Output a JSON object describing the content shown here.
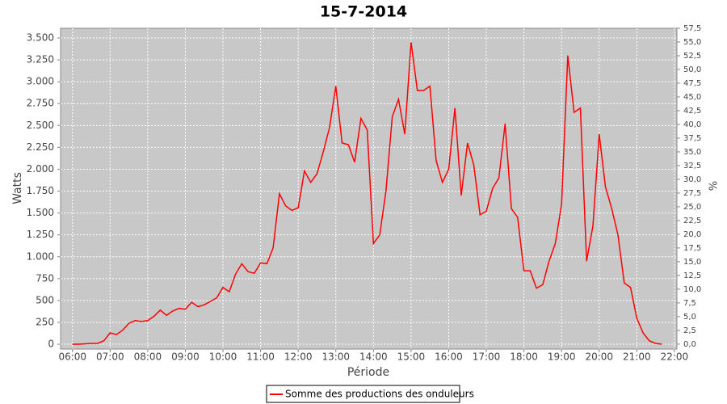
{
  "chart_data": {
    "type": "line",
    "title": "15-7-2014",
    "x_label": "Période",
    "y_label": "Watts",
    "y2_label": "%",
    "x": [
      "06:00",
      "06:10",
      "06:20",
      "06:30",
      "06:40",
      "06:50",
      "07:00",
      "07:10",
      "07:20",
      "07:30",
      "07:40",
      "07:50",
      "08:00",
      "08:10",
      "08:20",
      "08:30",
      "08:40",
      "08:50",
      "09:00",
      "09:10",
      "09:20",
      "09:30",
      "09:40",
      "09:50",
      "10:00",
      "10:10",
      "10:20",
      "10:30",
      "10:40",
      "10:50",
      "11:00",
      "11:10",
      "11:20",
      "11:30",
      "11:40",
      "11:50",
      "12:00",
      "12:10",
      "12:20",
      "12:30",
      "12:40",
      "12:50",
      "13:00",
      "13:10",
      "13:20",
      "13:30",
      "13:40",
      "13:50",
      "14:00",
      "14:10",
      "14:20",
      "14:30",
      "14:40",
      "14:50",
      "15:00",
      "15:10",
      "15:20",
      "15:30",
      "15:40",
      "15:50",
      "16:00",
      "16:10",
      "16:20",
      "16:30",
      "16:40",
      "16:50",
      "17:00",
      "17:10",
      "17:20",
      "17:30",
      "17:40",
      "17:50",
      "18:00",
      "18:10",
      "18:20",
      "18:30",
      "18:40",
      "18:50",
      "19:00",
      "19:10",
      "19:20",
      "19:30",
      "19:40",
      "19:50",
      "20:00",
      "20:10",
      "20:20",
      "20:30",
      "20:40",
      "20:50",
      "21:00",
      "21:10",
      "21:20",
      "21:30",
      "21:40"
    ],
    "series": [
      {
        "name": "Somme des productions des onduleurs",
        "color": "#ff0000",
        "values": [
          0,
          0,
          5,
          10,
          10,
          40,
          130,
          110,
          160,
          240,
          270,
          260,
          270,
          320,
          390,
          330,
          380,
          410,
          400,
          480,
          430,
          450,
          490,
          530,
          650,
          600,
          800,
          920,
          830,
          810,
          930,
          920,
          1100,
          1720,
          1580,
          1530,
          1560,
          1980,
          1850,
          1950,
          2200,
          2480,
          2950,
          2300,
          2280,
          2080,
          2580,
          2450,
          1150,
          1250,
          1750,
          2600,
          2800,
          2400,
          3450,
          2900,
          2900,
          2950,
          2100,
          1850,
          2000,
          2700,
          1700,
          2300,
          2050,
          1480,
          1520,
          1780,
          1900,
          2520,
          1550,
          1450,
          840,
          840,
          640,
          680,
          950,
          1150,
          1600,
          3300,
          2650,
          2700,
          950,
          1350,
          2400,
          1800,
          1550,
          1250,
          700,
          650,
          300,
          130,
          40,
          10,
          0
        ]
      }
    ],
    "xlim": [
      "05:41",
      "22:04"
    ],
    "xticks": [
      "06:00",
      "07:00",
      "08:00",
      "09:00",
      "10:00",
      "11:00",
      "12:00",
      "13:00",
      "14:00",
      "15:00",
      "16:00",
      "17:00",
      "18:00",
      "19:00",
      "20:00",
      "21:00",
      "22:00"
    ],
    "ylim": [
      -55,
      3611
    ],
    "yticks": [
      0,
      250,
      500,
      750,
      {
        "value": 1000,
        "label": "1.000"
      },
      {
        "value": 1250,
        "label": "1.250"
      },
      {
        "value": 1500,
        "label": "1.500"
      },
      {
        "value": 1750,
        "label": "1.750"
      },
      {
        "value": 2000,
        "label": "2.000"
      },
      {
        "value": 2250,
        "label": "2.250"
      },
      {
        "value": 2500,
        "label": "2.500"
      },
      {
        "value": 2750,
        "label": "2.750"
      },
      {
        "value": 3000,
        "label": "3.000"
      },
      {
        "value": 3250,
        "label": "3.250"
      },
      {
        "value": 3500,
        "label": "3.500"
      }
    ],
    "y2lim": [
      -0.9,
      57.5
    ],
    "y2ticks": [
      {
        "value": 0,
        "label": "0,0"
      },
      {
        "value": 2.5,
        "label": "2,5"
      },
      {
        "value": 5,
        "label": "5,0"
      },
      {
        "value": 7.5,
        "label": "7,5"
      },
      {
        "value": 10,
        "label": "10,0"
      },
      {
        "value": 12.5,
        "label": "12,5"
      },
      {
        "value": 15,
        "label": "15,0"
      },
      {
        "value": 17.5,
        "label": "17,5"
      },
      {
        "value": 20,
        "label": "20,0"
      },
      {
        "value": 22.5,
        "label": "22,5"
      },
      {
        "value": 25,
        "label": "25,0"
      },
      {
        "value": 27.5,
        "label": "27,5"
      },
      {
        "value": 30,
        "label": "30,0"
      },
      {
        "value": 32.5,
        "label": "32,5"
      },
      {
        "value": 35,
        "label": "35,0"
      },
      {
        "value": 37.5,
        "label": "37,5"
      },
      {
        "value": 40,
        "label": "40,0"
      },
      {
        "value": 42.5,
        "label": "42,5"
      },
      {
        "value": 45,
        "label": "45,0"
      },
      {
        "value": 47.5,
        "label": "47,5"
      },
      {
        "value": 50,
        "label": "50,0"
      },
      {
        "value": 52.5,
        "label": "52,5"
      },
      {
        "value": 55,
        "label": "55,0"
      },
      {
        "value": 57.5,
        "label": "57,5"
      }
    ],
    "grid": true,
    "plot_background": "#c8c8c8",
    "legend": "bottom"
  }
}
